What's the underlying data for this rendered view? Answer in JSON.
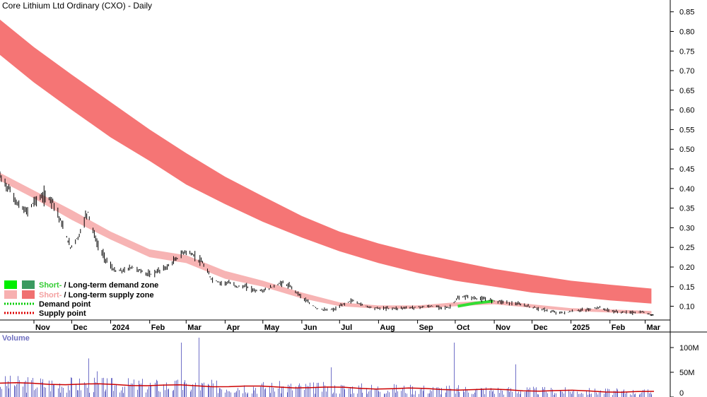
{
  "chart_data": {
    "type": "line",
    "title": "Core Lithium Ltd Ordinary (CXO) - Daily",
    "price_axis": {
      "ylim": [
        0.065,
        0.88
      ],
      "ticks": [
        0.85,
        0.8,
        0.75,
        0.7,
        0.65,
        0.6,
        0.55,
        0.5,
        0.45,
        0.4,
        0.35,
        0.3,
        0.25,
        0.2,
        0.15,
        0.1
      ],
      "tick_labels": [
        "0.85",
        "0.80",
        "0.75",
        "0.70",
        "0.65",
        "0.60",
        "0.55",
        "0.50",
        "0.45",
        "0.40",
        "0.35",
        "0.30",
        "0.25",
        "0.20",
        "0.15",
        "0.10"
      ],
      "position": "right"
    },
    "time_axis": {
      "start": "2023-10-05",
      "end": "2025-03-08",
      "month_ticks": [
        {
          "label": "Nov",
          "date": "2023-11-01"
        },
        {
          "label": "Dec",
          "date": "2023-12-01"
        },
        {
          "label": "2024",
          "date": "2024-01-01"
        },
        {
          "label": "Feb",
          "date": "2024-02-01"
        },
        {
          "label": "Mar",
          "date": "2024-03-01"
        },
        {
          "label": "Apr",
          "date": "2024-04-01"
        },
        {
          "label": "May",
          "date": "2024-05-01"
        },
        {
          "label": "Jun",
          "date": "2024-06-01"
        },
        {
          "label": "Jul",
          "date": "2024-07-01"
        },
        {
          "label": "Aug",
          "date": "2024-08-01"
        },
        {
          "label": "Sep",
          "date": "2024-09-01"
        },
        {
          "label": "Oct",
          "date": "2024-10-01"
        },
        {
          "label": "Nov",
          "date": "2024-11-01"
        },
        {
          "label": "Dec",
          "date": "2024-12-01"
        },
        {
          "label": "2025",
          "date": "2025-01-01"
        },
        {
          "label": "Feb",
          "date": "2025-02-01"
        },
        {
          "label": "Mar",
          "date": "2025-03-01"
        }
      ]
    },
    "price_series": {
      "name": "CXO close",
      "dates": [
        "2023-10-05",
        "2023-10-12",
        "2023-10-19",
        "2023-10-26",
        "2023-11-02",
        "2023-11-09",
        "2023-11-16",
        "2023-11-23",
        "2023-11-30",
        "2023-12-07",
        "2023-12-12",
        "2023-12-14",
        "2023-12-21",
        "2023-12-28",
        "2024-01-04",
        "2024-01-11",
        "2024-01-18",
        "2024-01-25",
        "2024-02-01",
        "2024-02-08",
        "2024-02-15",
        "2024-02-22",
        "2024-02-29",
        "2024-03-07",
        "2024-03-14",
        "2024-03-21",
        "2024-03-28",
        "2024-04-04",
        "2024-04-11",
        "2024-04-18",
        "2024-04-25",
        "2024-05-02",
        "2024-05-09",
        "2024-05-16",
        "2024-05-23",
        "2024-05-30",
        "2024-06-06",
        "2024-06-13",
        "2024-06-20",
        "2024-06-27",
        "2024-07-04",
        "2024-07-11",
        "2024-07-18",
        "2024-07-25",
        "2024-08-01",
        "2024-08-15",
        "2024-08-29",
        "2024-09-12",
        "2024-09-26",
        "2024-10-03",
        "2024-10-10",
        "2024-10-17",
        "2024-10-24",
        "2024-10-31",
        "2024-11-07",
        "2024-11-14",
        "2024-11-21",
        "2024-11-28",
        "2024-12-05",
        "2024-12-12",
        "2024-12-19",
        "2024-12-26",
        "2025-01-02",
        "2025-01-09",
        "2025-01-16",
        "2025-01-23",
        "2025-01-30",
        "2025-02-06",
        "2025-02-13",
        "2025-02-20",
        "2025-02-27",
        "2025-03-06"
      ],
      "values": [
        0.43,
        0.4,
        0.36,
        0.34,
        0.37,
        0.38,
        0.37,
        0.31,
        0.25,
        0.28,
        0.33,
        0.34,
        0.26,
        0.22,
        0.19,
        0.19,
        0.2,
        0.19,
        0.18,
        0.19,
        0.2,
        0.22,
        0.24,
        0.23,
        0.21,
        0.17,
        0.16,
        0.16,
        0.15,
        0.15,
        0.14,
        0.14,
        0.15,
        0.16,
        0.15,
        0.13,
        0.11,
        0.095,
        0.09,
        0.092,
        0.105,
        0.115,
        0.105,
        0.098,
        0.095,
        0.095,
        0.097,
        0.1,
        0.096,
        0.12,
        0.125,
        0.12,
        0.118,
        0.115,
        0.112,
        0.108,
        0.105,
        0.1,
        0.095,
        0.09,
        0.085,
        0.083,
        0.087,
        0.09,
        0.092,
        0.097,
        0.09,
        0.086,
        0.085,
        0.084,
        0.085,
        0.078
      ]
    },
    "short_term_zone": {
      "name": "Short- / Long-term supply zone",
      "dates": [
        "2023-10-05",
        "2023-11-01",
        "2023-12-01",
        "2024-01-01",
        "2024-02-01",
        "2024-03-01",
        "2024-04-01",
        "2024-05-01",
        "2024-06-01",
        "2024-07-01",
        "2024-08-01",
        "2024-09-01",
        "2024-10-01",
        "2024-11-01",
        "2024-12-01",
        "2025-01-01",
        "2025-02-01",
        "2025-03-06"
      ],
      "upper": [
        0.44,
        0.395,
        0.345,
        0.29,
        0.245,
        0.23,
        0.19,
        0.165,
        0.135,
        0.11,
        0.102,
        0.102,
        0.11,
        0.115,
        0.105,
        0.095,
        0.092,
        0.088
      ],
      "lower": [
        0.42,
        0.375,
        0.32,
        0.27,
        0.225,
        0.21,
        0.17,
        0.15,
        0.12,
        0.1,
        0.094,
        0.094,
        0.1,
        0.105,
        0.096,
        0.088,
        0.084,
        0.08
      ]
    },
    "long_term_zone": {
      "dates": [
        "2023-10-05",
        "2023-11-01",
        "2023-12-01",
        "2024-01-01",
        "2024-02-01",
        "2024-03-01",
        "2024-04-01",
        "2024-05-01",
        "2024-06-01",
        "2024-07-01",
        "2024-08-01",
        "2024-09-01",
        "2024-10-01",
        "2024-11-01",
        "2024-12-01",
        "2025-01-01",
        "2025-02-01",
        "2025-03-06"
      ],
      "upper": [
        0.83,
        0.76,
        0.69,
        0.62,
        0.55,
        0.49,
        0.43,
        0.38,
        0.33,
        0.29,
        0.26,
        0.235,
        0.215,
        0.195,
        0.18,
        0.165,
        0.155,
        0.145
      ],
      "lower": [
        0.74,
        0.67,
        0.6,
        0.53,
        0.47,
        0.41,
        0.36,
        0.315,
        0.275,
        0.24,
        0.21,
        0.185,
        0.165,
        0.15,
        0.135,
        0.125,
        0.115,
        0.107
      ]
    },
    "demand_segment": {
      "dates": [
        "2024-10-03",
        "2024-10-17",
        "2024-10-31"
      ],
      "values": [
        0.1,
        0.108,
        0.113
      ]
    },
    "volume_series": {
      "name": "Volume",
      "ylim": [
        0,
        120
      ],
      "unit": "M",
      "ticks": [
        100,
        50,
        0
      ],
      "tick_labels": [
        "100M",
        "50M",
        "0"
      ],
      "spikes": [
        {
          "date": "2023-12-14",
          "value": 78
        },
        {
          "date": "2023-12-21",
          "value": 52
        },
        {
          "date": "2024-02-26",
          "value": 110
        },
        {
          "date": "2024-03-11",
          "value": 120
        },
        {
          "date": "2024-06-24",
          "value": 60
        },
        {
          "date": "2024-09-30",
          "value": 110
        },
        {
          "date": "2024-11-18",
          "value": 66
        }
      ],
      "avg_start": 28,
      "avg_end": 10
    },
    "legend": {
      "position": "bottom-left",
      "entries": [
        {
          "prefix": "Short-",
          "sep": " / ",
          "suffix": "Long-term demand zone",
          "color_short": "#00ee00",
          "color_long": "#3a9a60",
          "text_color_prefix": "#33cc33"
        },
        {
          "prefix": "Short-",
          "sep": " / ",
          "suffix": "Long-term supply zone",
          "color_short": "#f7b0b0",
          "color_long": "#f07070",
          "text_color_prefix": "#f4a0a0"
        },
        {
          "label": "Demand point",
          "color": "#00cc00",
          "style": "dotted"
        },
        {
          "label": "Supply point",
          "color": "#dd0000",
          "style": "dotted"
        }
      ]
    },
    "colors": {
      "price_bar": "#000000",
      "short_supply": "#f7b4b4",
      "long_supply": "#f57575",
      "short_demand": "#33dd33",
      "breakout": "#f07a20",
      "volume_bar": "#7070c8",
      "volume_avg": "#cc0000",
      "grid": "#000000"
    },
    "grid": false
  }
}
